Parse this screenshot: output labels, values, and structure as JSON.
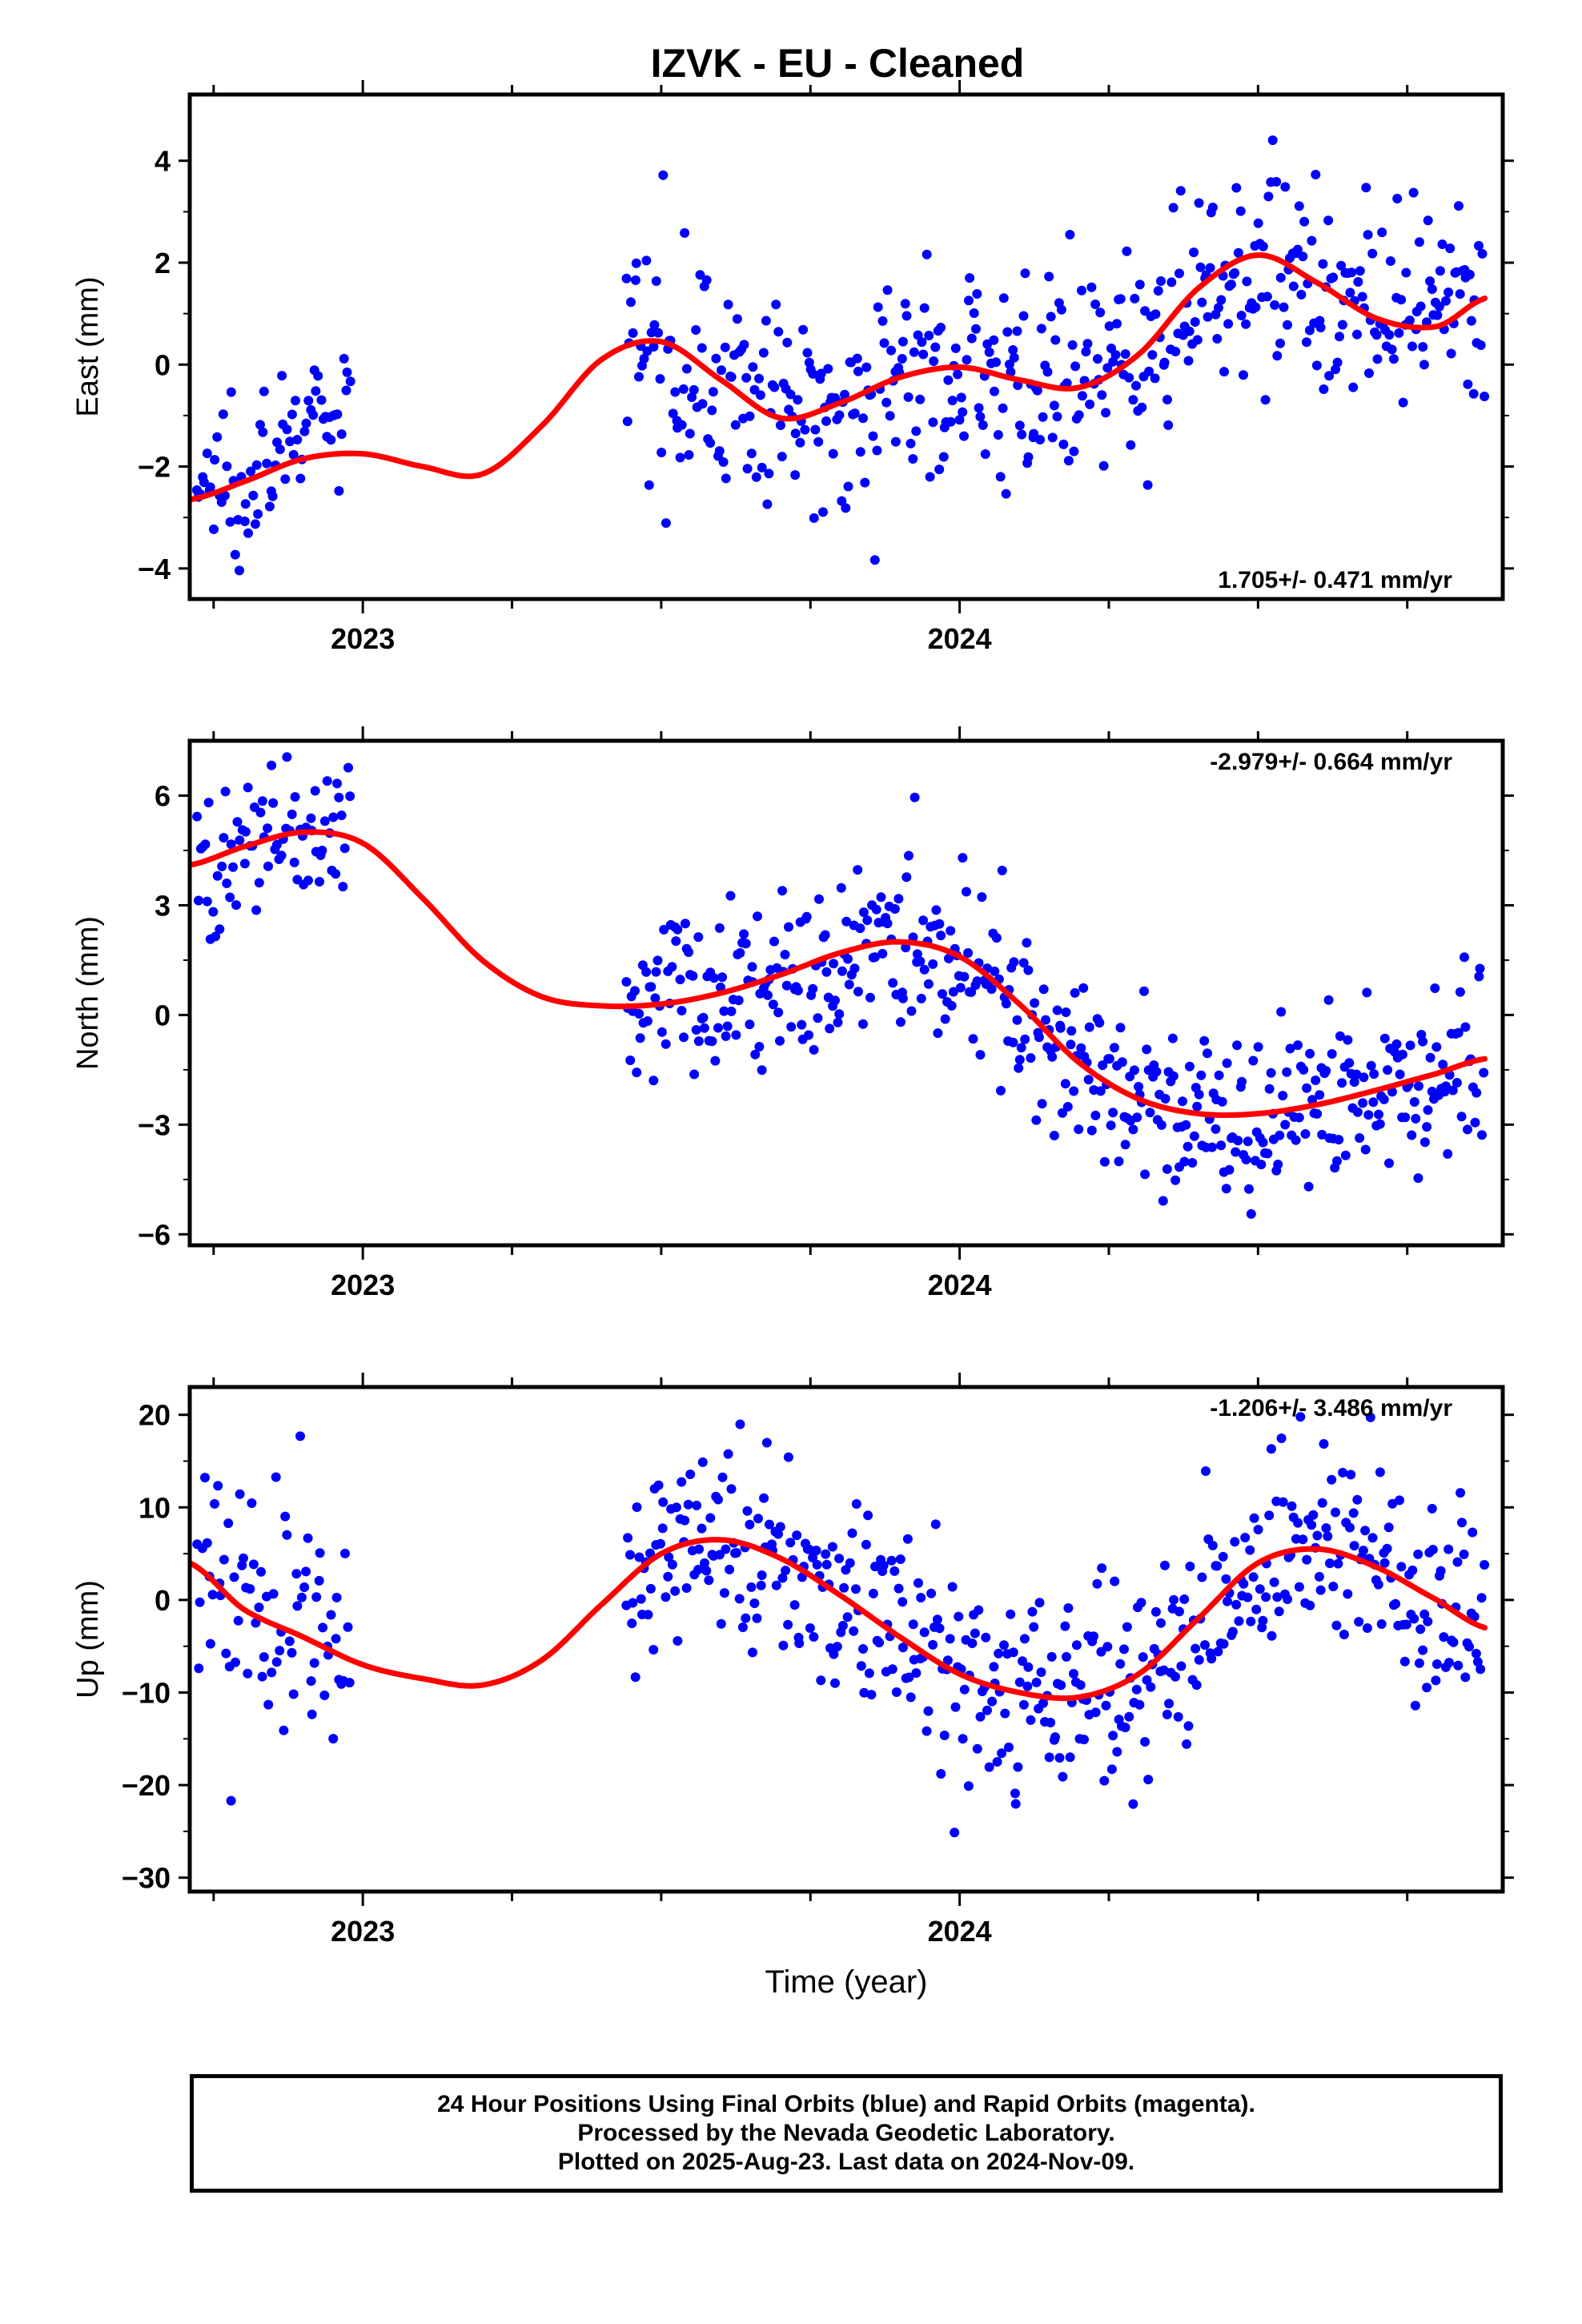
{
  "title": "IZVK  - EU - Cleaned",
  "x_axis_label": "Time (year)",
  "footer": {
    "line1": "24 Hour Positions Using Final Orbits (blue) and Rapid Orbits (magenta).",
    "line2": "Processed by the Nevada Geodetic Laboratory.",
    "line3": "Plotted on 2025-Aug-23. Last data on 2024-Nov-09."
  },
  "colors": {
    "points": "#0000ff",
    "fit": "#ff0000",
    "frame": "#000000"
  },
  "chart_data": [
    {
      "type": "scatter",
      "name": "east",
      "ylabel": "East (mm)",
      "rate_label": "1.705+/- 0.471 mm/yr",
      "rate_position": "bottom-right",
      "xlim": [
        2022.71,
        2024.91
      ],
      "ylim": [
        -4.6,
        5.3
      ],
      "y_ticks": [
        -4,
        -2,
        0,
        2,
        4
      ],
      "y_tick_labels": [
        "−4",
        "−2",
        "0",
        "2",
        "4"
      ],
      "x_ticks": [
        2023,
        2024
      ],
      "x_tick_labels": [
        "2023",
        "2024"
      ],
      "fit_curve": {
        "x": [
          2022.71,
          2022.8,
          2022.9,
          2023.0,
          2023.1,
          2023.2,
          2023.3,
          2023.4,
          2023.5,
          2023.6,
          2023.7,
          2023.8,
          2023.9,
          2024.0,
          2024.1,
          2024.2,
          2024.3,
          2024.4,
          2024.5,
          2024.6,
          2024.7,
          2024.8,
          2024.88
        ],
        "y": [
          -2.65,
          -2.3,
          -1.85,
          -1.75,
          -2.0,
          -2.15,
          -1.2,
          0.1,
          0.45,
          -0.3,
          -1.05,
          -0.75,
          -0.25,
          -0.05,
          -0.3,
          -0.45,
          0.2,
          1.5,
          2.15,
          1.6,
          0.9,
          0.75,
          1.3
        ]
      },
      "segments": [
        {
          "x0": 2022.72,
          "x1": 2022.98,
          "center": [
            2022.71,
            2022.98
          ],
          "center_y": [
            -2.45,
            -0.45
          ],
          "spread": 0.8,
          "n": 75
        },
        {
          "x0": 2023.44,
          "x1": 2024.88,
          "spread": 1.0,
          "n": 480
        }
      ]
    },
    {
      "type": "scatter",
      "name": "north",
      "ylabel": "North (mm)",
      "rate_label": "-2.979+/- 0.664 mm/yr",
      "rate_position": "top-right",
      "xlim": [
        2022.71,
        2024.91
      ],
      "ylim": [
        -6.3,
        7.5
      ],
      "y_ticks": [
        -6,
        -3,
        0,
        3,
        6
      ],
      "y_tick_labels": [
        "−6",
        "−3",
        "0",
        "3",
        "6"
      ],
      "x_ticks": [
        2023,
        2024
      ],
      "x_tick_labels": [
        "2023",
        "2024"
      ],
      "fit_curve": {
        "x": [
          2022.71,
          2022.8,
          2022.9,
          2023.0,
          2023.1,
          2023.2,
          2023.3,
          2023.4,
          2023.5,
          2023.6,
          2023.7,
          2023.8,
          2023.9,
          2024.0,
          2024.1,
          2024.2,
          2024.3,
          2024.4,
          2024.5,
          2024.6,
          2024.7,
          2024.8,
          2024.88
        ],
        "y": [
          4.1,
          4.6,
          5.0,
          4.7,
          3.2,
          1.5,
          0.5,
          0.25,
          0.3,
          0.6,
          1.1,
          1.7,
          2.0,
          1.6,
          0.3,
          -1.3,
          -2.3,
          -2.7,
          -2.7,
          -2.45,
          -2.05,
          -1.6,
          -1.2
        ]
      },
      "segments": [
        {
          "x0": 2022.72,
          "x1": 2022.98,
          "spread": 1.1,
          "n": 75
        },
        {
          "x0": 2023.44,
          "x1": 2024.88,
          "spread": 1.2,
          "n": 480
        }
      ]
    },
    {
      "type": "scatter",
      "name": "up",
      "ylabel": "Up (mm)",
      "rate_label": "-1.206+/- 3.486 mm/yr",
      "rate_position": "top-right",
      "xlim": [
        2022.71,
        2024.91
      ],
      "ylim": [
        -31.5,
        23
      ],
      "y_ticks": [
        -30,
        -20,
        -10,
        0,
        10,
        20
      ],
      "y_tick_labels": [
        "−30",
        "−20",
        "−10",
        "0",
        "10",
        "20"
      ],
      "x_ticks": [
        2023,
        2024
      ],
      "x_tick_labels": [
        "2023",
        "2024"
      ],
      "fit_curve": {
        "x": [
          2022.71,
          2022.8,
          2022.9,
          2023.0,
          2023.1,
          2023.2,
          2023.3,
          2023.4,
          2023.5,
          2023.6,
          2023.7,
          2023.8,
          2023.9,
          2024.0,
          2024.1,
          2024.2,
          2024.3,
          2024.4,
          2024.5,
          2024.6,
          2024.7,
          2024.8,
          2024.88
        ],
        "y": [
          4.0,
          -1.0,
          -4.0,
          -7.0,
          -8.5,
          -9.2,
          -6.5,
          -0.5,
          5.0,
          6.5,
          4.5,
          0.5,
          -4.0,
          -8.0,
          -10.0,
          -10.5,
          -8.0,
          -2.0,
          4.0,
          5.5,
          3.5,
          0.0,
          -3.0
        ]
      },
      "segments": [
        {
          "x0": 2022.72,
          "x1": 2022.98,
          "spread": 7.0,
          "n": 75
        },
        {
          "x0": 2023.44,
          "x1": 2024.88,
          "spread": 5.5,
          "n": 480
        }
      ]
    }
  ]
}
